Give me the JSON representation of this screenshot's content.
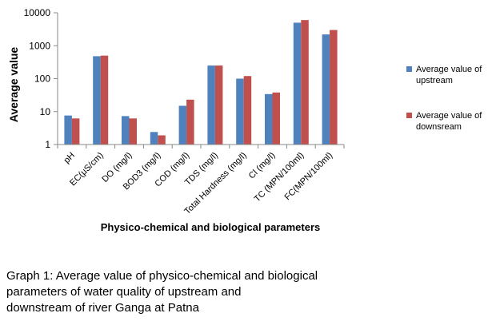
{
  "chart_data": {
    "type": "bar",
    "ylabel": "Average value",
    "xlabel": "Physico-chemical and biological parameters",
    "yscale": "log",
    "ylim": [
      1,
      10000
    ],
    "yticks": [
      "1",
      "10",
      "100",
      "1000",
      "10000"
    ],
    "categories": [
      "pH",
      "EC(µS/cm)",
      "DO (mg/l)",
      "BOD3 (mg/l)",
      "COD (mg/l)",
      "TDS (mg/l)",
      "Total Hardness (mg/l)",
      "Cl (mg/l)",
      "TC (MPN/100ml)",
      "FC(MPN/100ml)"
    ],
    "series": [
      {
        "name": "Average value of upstream",
        "color": "#4F81BD",
        "values": [
          7.6,
          480,
          7.3,
          2.4,
          15,
          250,
          100,
          34,
          5000,
          2200
        ]
      },
      {
        "name": "Average value of downsream",
        "color": "#C0504D",
        "values": [
          6.2,
          500,
          6.2,
          1.9,
          23,
          250,
          120,
          38,
          6000,
          3000
        ]
      }
    ],
    "legend_position": "right",
    "grid": false
  },
  "caption": {
    "line1": "Graph 1: Average value of physico-chemical and biological",
    "line2": "parameters of water quality of upstream and",
    "line3": "downstream of river Ganga at Patna"
  }
}
